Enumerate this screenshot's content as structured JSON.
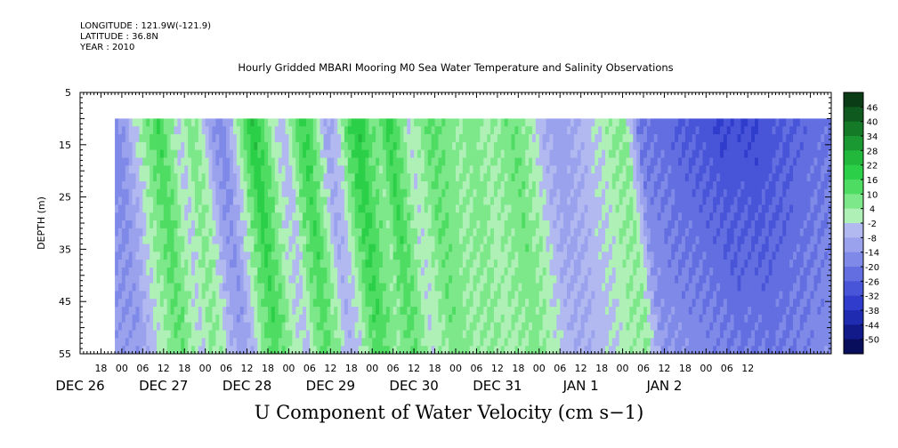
{
  "header": {
    "longitude": "LONGITUDE : 121.9W(-121.9)",
    "latitude": "LATITUDE : 36.8N",
    "year": "YEAR : 2010"
  },
  "chart_data": {
    "type": "heatmap",
    "title": "Hourly Gridded MBARI Mooring M0 Sea Water Temperature and Salinity Observations",
    "subtitle": "U Component of Water Velocity (cm s−1)",
    "ylabel": "DEPTH (m)",
    "ylim": [
      5,
      55
    ],
    "y_ticks": [
      "5",
      "15",
      "25",
      "35",
      "45",
      "55"
    ],
    "y_inverted": true,
    "xlim_hours": [
      -12,
      204
    ],
    "x_hour_ticks": [
      "18",
      "00",
      "06",
      "12",
      "18",
      "00",
      "06",
      "12",
      "18",
      "00",
      "06",
      "12",
      "18",
      "00",
      "06",
      "12",
      "18",
      "00",
      "06",
      "12",
      "18",
      "00",
      "06",
      "12",
      "18",
      "00",
      "06",
      "12",
      "18",
      "00",
      "06",
      "12"
    ],
    "x_day_labels": [
      {
        "label": "DEC 26",
        "hour": -12
      },
      {
        "label": "DEC 27",
        "hour": 12
      },
      {
        "label": "DEC 28",
        "hour": 36
      },
      {
        "label": "DEC 29",
        "hour": 60
      },
      {
        "label": "DEC 30",
        "hour": 84
      },
      {
        "label": "DEC 31",
        "hour": 108
      },
      {
        "label": "JAN  1",
        "hour": 132
      },
      {
        "label": "JAN  2",
        "hour": 156
      }
    ],
    "data_depth_range": [
      10,
      55
    ],
    "data_time_range_hours": [
      -2,
      204
    ],
    "colorbar_levels": [
      "46",
      "40",
      "34",
      "28",
      "22",
      "16",
      "10",
      "4",
      "-2",
      "-8",
      "-14",
      "-20",
      "-26",
      "-32",
      "-38",
      "-44",
      "-50"
    ],
    "colorbar_colors": [
      "#0a3d16",
      "#0f5a1f",
      "#147a28",
      "#1a9932",
      "#22b83c",
      "#2ccf48",
      "#4fdc62",
      "#7ce88a",
      "#aef0b6",
      "#b2b8f0",
      "#9aa2ee",
      "#7f8ae8",
      "#636ee0",
      "#4855d8",
      "#2f3ccc",
      "#1f2bb0",
      "#121a8a",
      "#080d5c"
    ],
    "u_profile": [
      {
        "t": -2,
        "u": -18
      },
      {
        "t": 2,
        "u": -6
      },
      {
        "t": 6,
        "u": 6
      },
      {
        "t": 10,
        "u": 16
      },
      {
        "t": 13,
        "u": 6
      },
      {
        "t": 16,
        "u": -4
      },
      {
        "t": 19,
        "u": 8
      },
      {
        "t": 22,
        "u": 2
      },
      {
        "t": 25,
        "u": -12
      },
      {
        "t": 28,
        "u": -18
      },
      {
        "t": 31,
        "u": -6
      },
      {
        "t": 34,
        "u": 10
      },
      {
        "t": 37,
        "u": 22
      },
      {
        "t": 40,
        "u": 12
      },
      {
        "t": 43,
        "u": 0
      },
      {
        "t": 46,
        "u": -6
      },
      {
        "t": 49,
        "u": 10
      },
      {
        "t": 52,
        "u": 18
      },
      {
        "t": 55,
        "u": 6
      },
      {
        "t": 58,
        "u": -10
      },
      {
        "t": 61,
        "u": -4
      },
      {
        "t": 64,
        "u": 12
      },
      {
        "t": 67,
        "u": 22
      },
      {
        "t": 70,
        "u": 12
      },
      {
        "t": 73,
        "u": 6
      },
      {
        "t": 76,
        "u": 18
      },
      {
        "t": 79,
        "u": 10
      },
      {
        "t": 82,
        "u": -2
      },
      {
        "t": 85,
        "u": 4
      },
      {
        "t": 88,
        "u": 12
      },
      {
        "t": 92,
        "u": 8
      },
      {
        "t": 96,
        "u": 4
      },
      {
        "t": 100,
        "u": 8
      },
      {
        "t": 104,
        "u": 2
      },
      {
        "t": 108,
        "u": 6
      },
      {
        "t": 112,
        "u": 10
      },
      {
        "t": 116,
        "u": 4
      },
      {
        "t": 120,
        "u": -6
      },
      {
        "t": 124,
        "u": -12
      },
      {
        "t": 128,
        "u": -10
      },
      {
        "t": 132,
        "u": -6
      },
      {
        "t": 136,
        "u": -2
      },
      {
        "t": 140,
        "u": 4
      },
      {
        "t": 144,
        "u": 6
      },
      {
        "t": 148,
        "u": -20
      },
      {
        "t": 152,
        "u": -22
      },
      {
        "t": 156,
        "u": -24
      },
      {
        "t": 160,
        "u": -26
      },
      {
        "t": 164,
        "u": -28
      },
      {
        "t": 168,
        "u": -30
      },
      {
        "t": 172,
        "u": -32
      },
      {
        "t": 176,
        "u": -30
      },
      {
        "t": 180,
        "u": -32
      },
      {
        "t": 184,
        "u": -30
      },
      {
        "t": 188,
        "u": -28
      },
      {
        "t": 192,
        "u": -26
      },
      {
        "t": 196,
        "u": -24
      },
      {
        "t": 200,
        "u": -22
      },
      {
        "t": 204,
        "u": -22
      }
    ]
  }
}
